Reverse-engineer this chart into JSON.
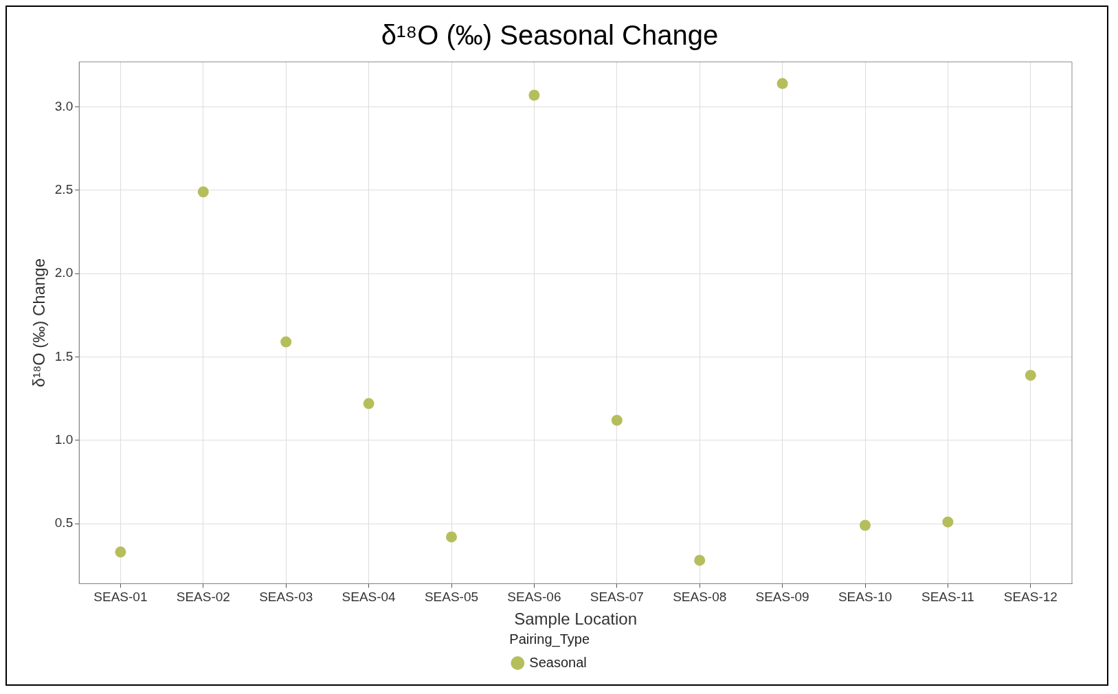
{
  "chart_data": {
    "type": "scatter",
    "title": "δ¹⁸O (‰) Seasonal Change",
    "xlabel": "Sample Location",
    "ylabel": "δ¹⁸O (‰) Change",
    "legend_title": "Pairing_Type",
    "categories": [
      "SEAS-01",
      "SEAS-02",
      "SEAS-03",
      "SEAS-04",
      "SEAS-05",
      "SEAS-06",
      "SEAS-07",
      "SEAS-08",
      "SEAS-09",
      "SEAS-10",
      "SEAS-11",
      "SEAS-12"
    ],
    "series": [
      {
        "name": "Seasonal",
        "color": "#b5be5c",
        "values": [
          0.33,
          2.49,
          1.59,
          1.22,
          0.42,
          3.07,
          1.12,
          0.28,
          3.14,
          0.49,
          0.51,
          1.39
        ]
      }
    ],
    "ylim": [
      0.14,
      3.27
    ],
    "yticks": [
      {
        "value": 0.5,
        "label": "0.5"
      },
      {
        "value": 1,
        "label": "1.0"
      },
      {
        "value": 1.5,
        "label": "1.5"
      },
      {
        "value": 2,
        "label": "2.0"
      },
      {
        "value": 2.5,
        "label": "2.5"
      },
      {
        "value": 3,
        "label": "3.0"
      }
    ],
    "grid": true,
    "legend": "bottom",
    "marker": "circle"
  }
}
